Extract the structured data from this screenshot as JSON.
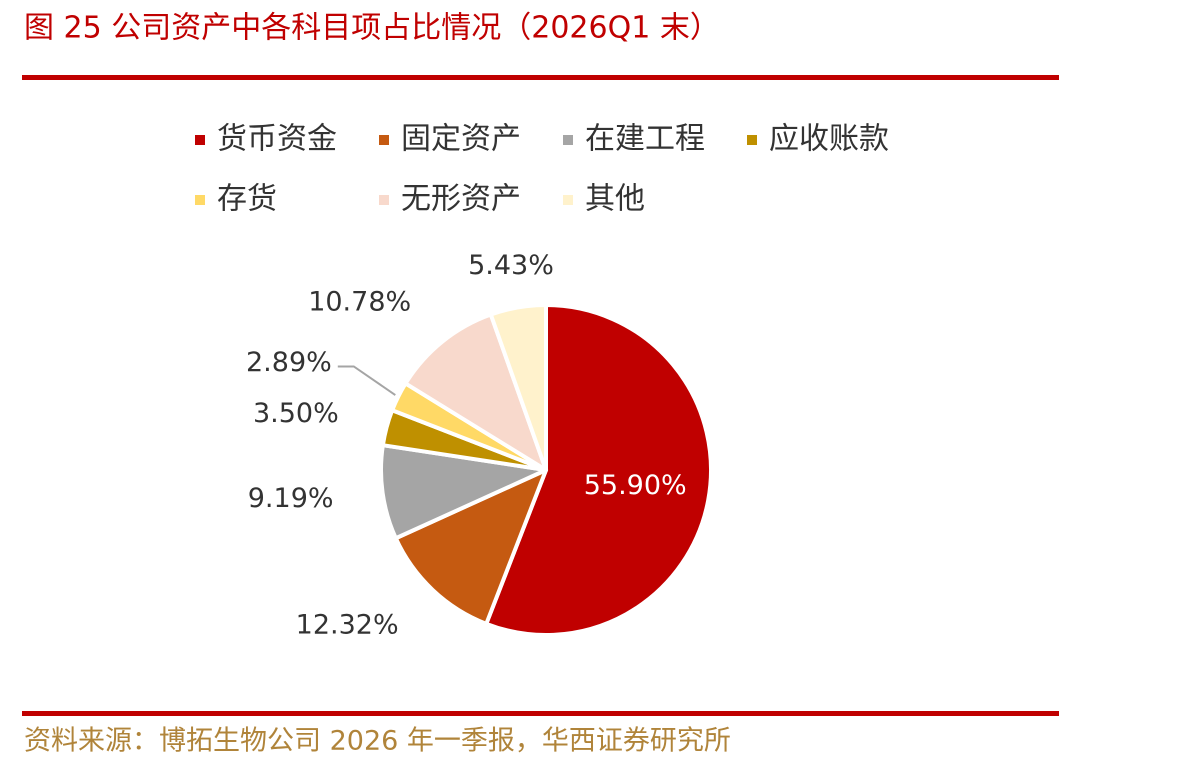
{
  "chart_data": {
    "type": "pie",
    "title": "图 25 公司资产中各科目项占比情况（2026Q1 末）",
    "source": "资料来源：博拓生物公司 2026 年一季报，华西证券研究所",
    "categories": [
      "货币资金",
      "固定资产",
      "在建工程",
      "应收账款",
      "存货",
      "无形资产",
      "其他"
    ],
    "values": [
      55.9,
      12.32,
      9.19,
      3.5,
      2.89,
      10.78,
      5.43
    ],
    "value_labels": [
      "55.90%",
      "12.32%",
      "9.19%",
      "3.50%",
      "2.89%",
      "10.78%",
      "5.43%"
    ],
    "colors": [
      "#C00000",
      "#C55A11",
      "#A5A5A5",
      "#BF9000",
      "#FFD966",
      "#F8D9CC",
      "#FFF2CC"
    ],
    "legend": "top"
  }
}
